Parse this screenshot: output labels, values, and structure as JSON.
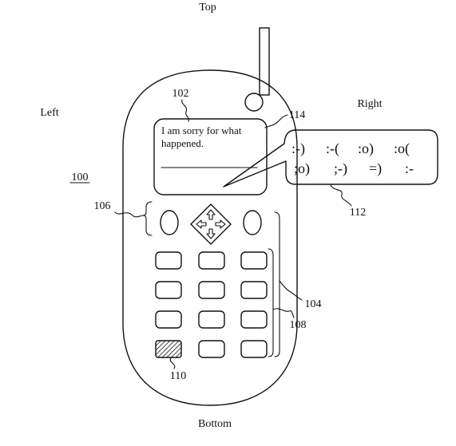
{
  "orientation": {
    "top": "Top",
    "bottom": "Bottom",
    "left": "Left",
    "right": "Right"
  },
  "device": {
    "reference": "100",
    "display_ref": "102",
    "keypad_ref": "104",
    "soft_keys_ref": "106",
    "menu_ref": "108",
    "highlighted_key_ref": "110",
    "popup_ref": "112",
    "pointer_ref": "114"
  },
  "screen": {
    "message_line_1": "I am sorry for what",
    "message_line_2": "happened."
  },
  "emoticon_menu": {
    "row_1": [
      ":-)",
      ":-(",
      ":o)",
      ":o("
    ],
    "row_2": [
      ";o)",
      ";-)",
      "=)",
      ":-"
    ]
  },
  "colors": {
    "ink": "#111111",
    "paper": "#ffffff"
  },
  "icons": {
    "nav_pad": "four-way-arrow-icon",
    "antenna": "antenna-icon",
    "earpiece": "earpiece-icon",
    "hatched_key": "hatched-key-icon"
  }
}
